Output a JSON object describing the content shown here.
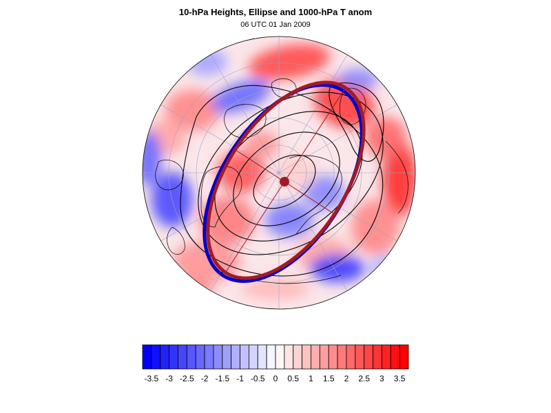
{
  "title": "10-hPa Heights, Ellipse and 1000-hPa T anom",
  "subtitle": "06 UTC 01 Jan 2009",
  "colorbar": {
    "min": -3.75,
    "max": 3.75,
    "step": 0.25,
    "tick_labels": [
      "-3.5",
      "-3",
      "-2.5",
      "-2",
      "-1.5",
      "-1",
      "-0.5",
      "0",
      "0.5",
      "1",
      "1.5",
      "2",
      "2.5",
      "3",
      "3.5"
    ],
    "tick_values": [
      -3.5,
      -3,
      -2.5,
      -2,
      -1.5,
      -1,
      -0.5,
      0,
      0.5,
      1,
      1.5,
      2,
      2.5,
      3,
      3.5
    ],
    "negative_color": "#0000ff",
    "positive_color": "#ff0000",
    "neutral_color": "#ffffff"
  },
  "map": {
    "projection": "north polar stereographic",
    "ellipse_colors": [
      "#0000cc",
      "#a31a24"
    ],
    "center_marker_color": "#a31a24",
    "contour_color": "#000000",
    "coastline_color": "#000000",
    "grid_color": "#9aa4c8"
  }
}
